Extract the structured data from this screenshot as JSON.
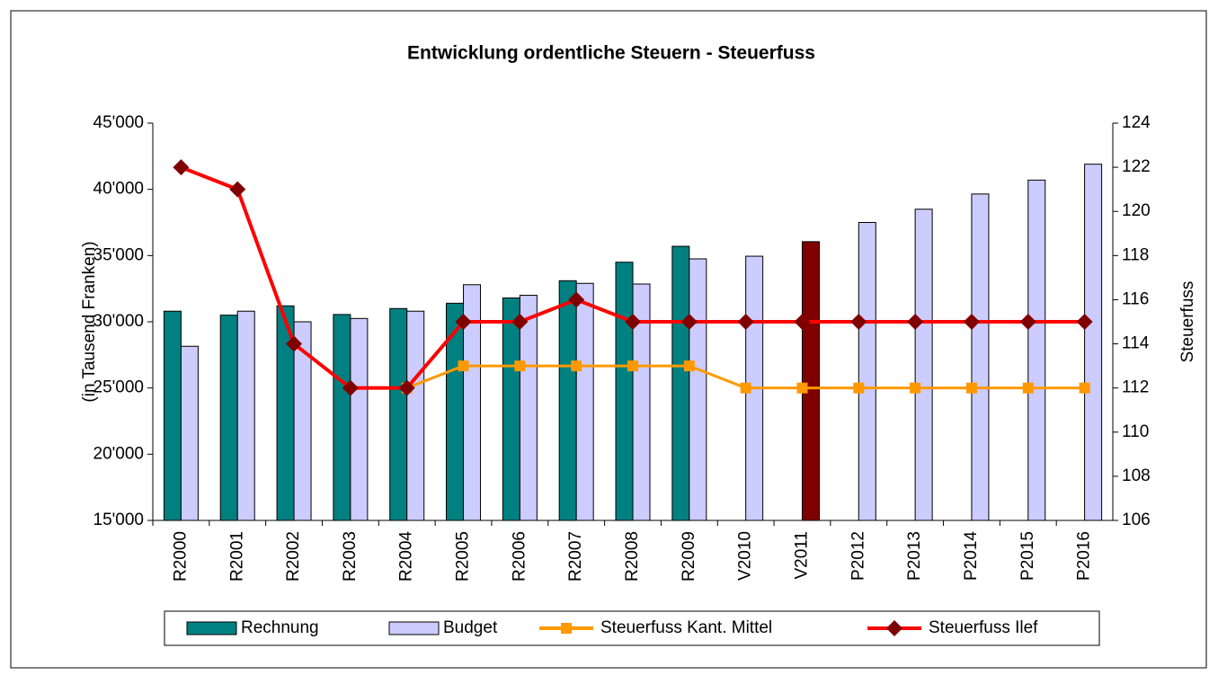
{
  "chart_data": {
    "type": "bar_line",
    "title": "Entwicklung ordentliche Steuern - Steuerfuss",
    "ylabel": "(in Tausend Franken)",
    "y2label": "Steuerfuss",
    "categories": [
      "R2000",
      "R2001",
      "R2002",
      "R2003",
      "R2004",
      "R2005",
      "R2006",
      "R2007",
      "R2008",
      "R2009",
      "V2010",
      "V2011",
      "P2012",
      "P2013",
      "P2014",
      "P2015",
      "P2016"
    ],
    "ylim": [
      15000,
      45000
    ],
    "yticks": [
      {
        "value": 15000,
        "label": "15'000"
      },
      {
        "value": 20000,
        "label": "20'000"
      },
      {
        "value": 25000,
        "label": "25'000"
      },
      {
        "value": 30000,
        "label": "30'000"
      },
      {
        "value": 35000,
        "label": "35'000"
      },
      {
        "value": 40000,
        "label": "40'000"
      },
      {
        "value": 45000,
        "label": "45'000"
      }
    ],
    "y2lim": [
      106,
      124
    ],
    "y2ticks": [
      106,
      108,
      110,
      112,
      114,
      116,
      118,
      120,
      122,
      124
    ],
    "highlight_index": 11,
    "highlight_color": "#800000",
    "series": [
      {
        "name": "Rechnung",
        "kind": "bar",
        "color": "#008080",
        "values": [
          30800,
          30500,
          31200,
          30550,
          31000,
          31400,
          31800,
          33100,
          34500,
          35700,
          null,
          null,
          null,
          null,
          null,
          null,
          null
        ]
      },
      {
        "name": "Budget",
        "kind": "bar",
        "color": "#ccccff",
        "values": [
          28150,
          30800,
          30000,
          30250,
          30800,
          32800,
          32000,
          32900,
          32850,
          34750,
          34950,
          36050,
          37500,
          38500,
          39650,
          40700,
          41900
        ]
      },
      {
        "name": "Steuerfuss Kant. Mittel",
        "kind": "line",
        "axis": "y2",
        "marker": "square",
        "color": "#ff9900",
        "values": [
          null,
          null,
          null,
          null,
          112,
          113,
          113,
          113,
          113,
          113,
          112,
          112,
          112,
          112,
          112,
          112,
          112
        ]
      },
      {
        "name": "Steuerfuss Ilef",
        "kind": "line",
        "axis": "y2",
        "marker": "diamond",
        "color": "#ff0000",
        "marker_color": "#800000",
        "values": [
          122,
          121,
          114,
          112,
          112,
          115,
          115,
          116,
          115,
          115,
          115,
          115,
          115,
          115,
          115,
          115,
          115
        ]
      }
    ]
  }
}
